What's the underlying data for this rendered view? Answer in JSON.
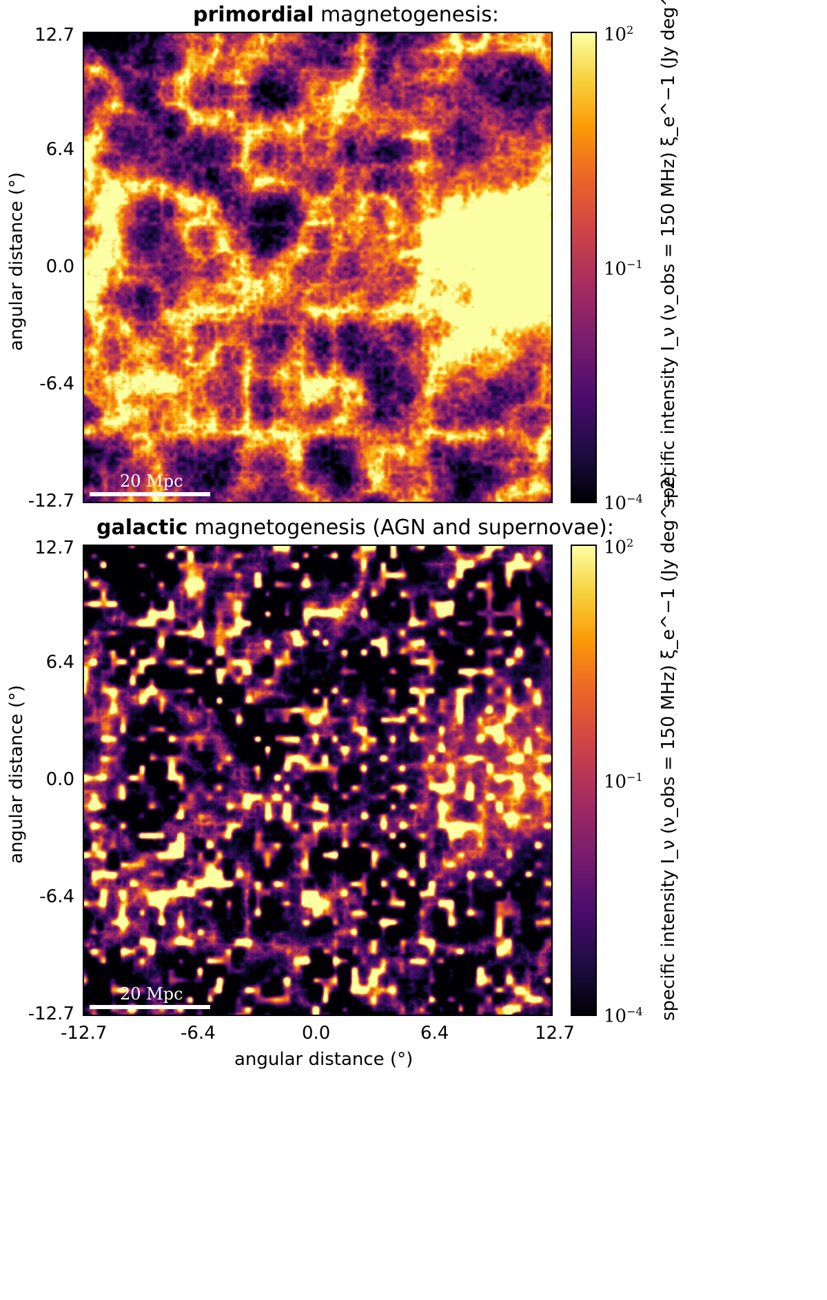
{
  "panels": [
    {
      "title_bold": "primordial",
      "title_rest": " magnetogenesis:",
      "scale_label": "20 Mpc",
      "colorbar": {
        "top": "10",
        "top_exp": "2",
        "mid": "10",
        "mid_exp": "−1",
        "bottom": "10",
        "bottom_exp": "−4"
      },
      "brightness": "high"
    },
    {
      "title_bold": "galactic",
      "title_rest": " magnetogenesis (AGN and supernovae):",
      "scale_label": "20 Mpc",
      "colorbar": {
        "top": "10",
        "top_exp": "2",
        "mid": "10",
        "mid_exp": "−1",
        "bottom": "10",
        "bottom_exp": "−4"
      },
      "brightness": "low"
    }
  ],
  "axes": {
    "y_ticks": [
      "12.7",
      "6.4",
      "0.0",
      "-6.4",
      "-12.7"
    ],
    "x_ticks": [
      "-12.7",
      "-6.4",
      "0.0",
      "6.4",
      "12.7"
    ],
    "ylabel": "angular distance (°)",
    "xlabel": "angular distance (°)",
    "cblabel": "specific intensity I_ν (ν_obs = 150 MHz) ξ_e^−1 (Jy deg^−2)"
  },
  "colormap": {
    "stops": [
      "#000004",
      "#1b0c41",
      "#4a0c6b",
      "#781c6d",
      "#a52c60",
      "#cf4446",
      "#ed6925",
      "#fb9b06",
      "#f7d13d",
      "#fcffa4"
    ]
  }
}
